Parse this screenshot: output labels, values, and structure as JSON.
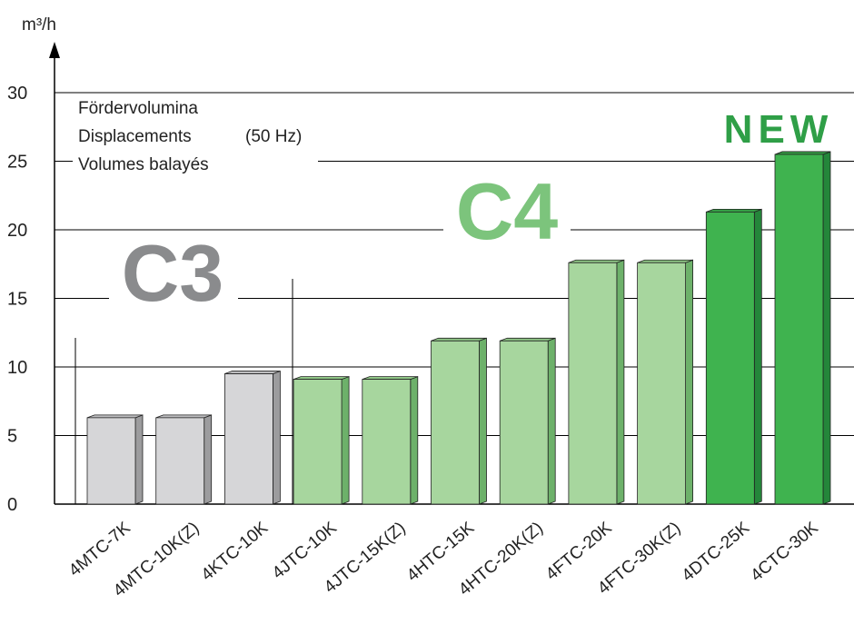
{
  "chart_data": {
    "type": "bar",
    "ylabel": "m³/h",
    "ylim": [
      0,
      30
    ],
    "yticks": [
      0,
      5,
      10,
      15,
      20,
      25,
      30
    ],
    "grid": true,
    "annotation_lines": [
      "Fördervolumina",
      "Displacements",
      "(50 Hz)",
      "Volumes balayés"
    ],
    "categories": [
      "4MTC-7K",
      "4MTC-10K(Z)",
      "4KTC-10K",
      "4JTC-10K",
      "4JTC-15K(Z)",
      "4HTC-15K",
      "4HTC-20K(Z)",
      "4FTC-20K",
      "4FTC-30K(Z)",
      "4DTC-25K",
      "4CTC-30K"
    ],
    "values": [
      6.3,
      6.3,
      9.5,
      9.1,
      9.1,
      11.9,
      11.9,
      17.6,
      17.6,
      21.3,
      25.5
    ],
    "groups": [
      {
        "label": "C3",
        "color": "#8a8b8d",
        "members": [
          "4MTC-7K",
          "4MTC-10K(Z)",
          "4KTC-10K"
        ]
      },
      {
        "label": "C4",
        "color": "#7cc47c",
        "members": [
          "4JTC-10K",
          "4JTC-15K(Z)",
          "4HTC-15K",
          "4HTC-20K(Z)",
          "4FTC-20K",
          "4FTC-30K(Z)",
          "4DTC-25K",
          "4CTC-30K"
        ]
      },
      {
        "label": "NEW",
        "color": "#2f9f47",
        "members": [
          "4DTC-25K",
          "4CTC-30K"
        ]
      }
    ],
    "bar_colors": {
      "c3": {
        "front": "#d6d6d8",
        "side": "#9c9c9e",
        "top": "#bdbdbf"
      },
      "c4": {
        "front": "#a7d69e",
        "side": "#6db16a",
        "top": "#8fc786"
      },
      "new": {
        "front": "#3fb34f",
        "side": "#24863a",
        "top": "#35a045"
      }
    }
  }
}
